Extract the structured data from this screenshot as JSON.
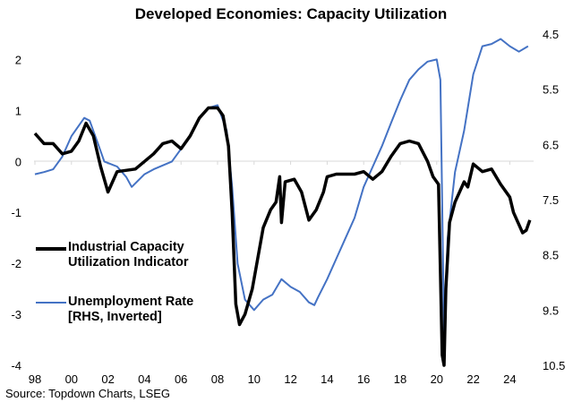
{
  "chart_data": {
    "type": "line",
    "title": "Developed Economies: Capacity Utilization",
    "source": "Source: Topdown Charts, LSEG",
    "x_ticks": [
      "98",
      "00",
      "02",
      "04",
      "06",
      "08",
      "10",
      "12",
      "14",
      "16",
      "18",
      "20",
      "22",
      "24"
    ],
    "x_tick_years": [
      1998,
      2000,
      2002,
      2004,
      2006,
      2008,
      2010,
      2012,
      2014,
      2016,
      2018,
      2020,
      2022,
      2024
    ],
    "xlim": [
      1998,
      2025.2
    ],
    "left_axis": {
      "ylim": [
        -4,
        2.5
      ],
      "ticks": [
        "2",
        "1",
        "0",
        "-1",
        "-2",
        "-3",
        "-4"
      ],
      "tick_values": [
        2,
        1,
        0,
        -1,
        -2,
        -3,
        -4
      ]
    },
    "right_axis": {
      "ylim": [
        4.5,
        10.5
      ],
      "inverted": true,
      "ticks": [
        "4.5",
        "5.5",
        "6.5",
        "7.5",
        "8.5",
        "9.5",
        "10.5"
      ],
      "tick_values": [
        4.5,
        5.5,
        6.5,
        7.5,
        8.5,
        9.5,
        10.5
      ]
    },
    "zero_gridline": true,
    "legend_placement": "bottom-left",
    "series": [
      {
        "name": "Industrial Capacity Utilization Indicator",
        "axis": "left",
        "color": "#000000",
        "x": [
          1998.0,
          1998.5,
          1999.0,
          1999.5,
          2000.0,
          2000.4,
          2000.8,
          2001.2,
          2001.6,
          2002.0,
          2002.5,
          2003.5,
          2004.0,
          2004.5,
          2005.0,
          2005.5,
          2006.0,
          2006.5,
          2007.0,
          2007.5,
          2008.0,
          2008.3,
          2008.6,
          2008.8,
          2009.0,
          2009.2,
          2009.5,
          2009.9,
          2010.2,
          2010.5,
          2010.9,
          2011.2,
          2011.4,
          2011.5,
          2011.7,
          2012.2,
          2012.6,
          2013.0,
          2013.4,
          2013.8,
          2014.0,
          2014.5,
          2015.5,
          2016.0,
          2016.5,
          2017.0,
          2017.5,
          2018.0,
          2018.5,
          2019.0,
          2019.5,
          2019.8,
          2020.1,
          2020.3,
          2020.4,
          2020.5,
          2020.7,
          2021.0,
          2021.5,
          2021.7,
          2022.0,
          2022.5,
          2023.0,
          2023.5,
          2024.0,
          2024.2,
          2024.7,
          2024.9,
          2025.1
        ],
        "values": [
          0.55,
          0.35,
          0.35,
          0.15,
          0.2,
          0.4,
          0.75,
          0.5,
          -0.1,
          -0.6,
          -0.2,
          -0.15,
          0.0,
          0.15,
          0.35,
          0.4,
          0.25,
          0.5,
          0.85,
          1.05,
          1.05,
          0.9,
          0.3,
          -1.0,
          -2.8,
          -3.2,
          -3.0,
          -2.5,
          -1.9,
          -1.3,
          -0.95,
          -0.8,
          -0.3,
          -1.2,
          -0.4,
          -0.35,
          -0.6,
          -1.15,
          -0.95,
          -0.6,
          -0.3,
          -0.25,
          -0.25,
          -0.2,
          -0.35,
          -0.2,
          0.1,
          0.35,
          0.4,
          0.35,
          0.0,
          -0.3,
          -0.45,
          -3.8,
          -4.0,
          -2.5,
          -1.2,
          -0.8,
          -0.4,
          -0.5,
          -0.05,
          -0.2,
          -0.15,
          -0.45,
          -0.7,
          -1.0,
          -1.4,
          -1.35,
          -1.15
        ]
      },
      {
        "name": "Unemployment Rate [RHS, Inverted]",
        "axis": "right",
        "color": "#4472C4",
        "x": [
          1998.0,
          1998.5,
          1999.0,
          1999.5,
          2000.0,
          2000.7,
          2001.0,
          2001.5,
          2001.8,
          2002.5,
          2003.0,
          2003.3,
          2004.0,
          2004.5,
          2005.5,
          2006.0,
          2006.5,
          2007.0,
          2007.5,
          2008.0,
          2008.5,
          2008.8,
          2009.1,
          2009.5,
          2010.0,
          2010.5,
          2011.0,
          2011.5,
          2012.0,
          2012.5,
          2013.0,
          2013.3,
          2013.5,
          2014.0,
          2014.5,
          2015.0,
          2015.5,
          2016.0,
          2016.5,
          2017.0,
          2017.5,
          2018.0,
          2018.5,
          2019.0,
          2019.5,
          2020.0,
          2020.2,
          2020.4,
          2020.6,
          2021.0,
          2021.5,
          2022.0,
          2022.5,
          2023.0,
          2023.5,
          2024.0,
          2024.5,
          2025.0
        ],
        "values": [
          7.04,
          7.0,
          6.95,
          6.72,
          6.35,
          6.02,
          6.07,
          6.53,
          6.81,
          6.9,
          7.09,
          7.27,
          7.04,
          6.95,
          6.81,
          6.58,
          6.35,
          6.02,
          5.84,
          5.79,
          6.25,
          7.27,
          8.66,
          9.31,
          9.5,
          9.31,
          9.22,
          8.94,
          9.08,
          9.17,
          9.36,
          9.41,
          9.27,
          8.94,
          8.57,
          8.2,
          7.83,
          7.27,
          6.9,
          6.53,
          6.11,
          5.7,
          5.33,
          5.14,
          5.0,
          4.96,
          5.33,
          9.96,
          8.2,
          7.0,
          6.25,
          5.23,
          4.72,
          4.68,
          4.59,
          4.72,
          4.82,
          4.72
        ]
      }
    ]
  }
}
